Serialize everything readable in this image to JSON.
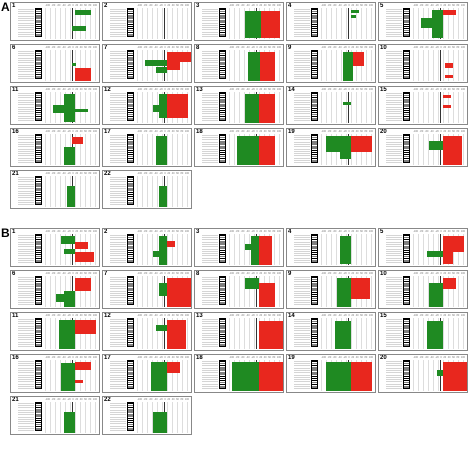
{
  "panels": [
    {
      "letter": "A",
      "chromosomes": [
        {
          "label": "1",
          "gain": [],
          "loss": [
            [
              0.05,
              0.2,
              0.55,
              0.85
            ],
            [
              0.55,
              0.7,
              0.5,
              0.75
            ]
          ]
        },
        {
          "label": "2",
          "gain": [],
          "loss": []
        },
        {
          "label": "3",
          "gain": [
            [
              0.08,
              0.92,
              0.6,
              0.95
            ]
          ],
          "loss": [
            [
              0.08,
              0.92,
              0.3,
              0.6
            ]
          ]
        },
        {
          "label": "4",
          "gain": [],
          "loss": [
            [
              0.05,
              0.15,
              0.55,
              0.7
            ],
            [
              0.2,
              0.3,
              0.55,
              0.65
            ]
          ]
        },
        {
          "label": "5",
          "gain": [
            [
              0.05,
              0.2,
              0.55,
              0.8
            ]
          ],
          "loss": [
            [
              0.05,
              0.9,
              0.35,
              0.55
            ],
            [
              0.3,
              0.6,
              0.15,
              0.35
            ]
          ]
        },
        {
          "label": "6",
          "gain": [
            [
              0.55,
              0.95,
              0.55,
              0.85
            ]
          ],
          "loss": [
            [
              0.4,
              0.5,
              0.5,
              0.58
            ]
          ]
        },
        {
          "label": "7",
          "gain": [
            [
              0.05,
              0.35,
              0.55,
              1.0
            ],
            [
              0.35,
              0.6,
              0.55,
              0.8
            ]
          ],
          "loss": [
            [
              0.3,
              0.5,
              0.15,
              0.55
            ],
            [
              0.5,
              0.7,
              0.35,
              0.55
            ]
          ]
        },
        {
          "label": "8",
          "gain": [
            [
              0.05,
              0.95,
              0.58,
              0.85
            ]
          ],
          "loss": [
            [
              0.05,
              0.95,
              0.35,
              0.58
            ]
          ]
        },
        {
          "label": "9",
          "gain": [
            [
              0.05,
              0.5,
              0.6,
              0.8
            ]
          ],
          "loss": [
            [
              0.05,
              0.95,
              0.4,
              0.6
            ]
          ]
        },
        {
          "label": "10",
          "gain": [
            [
              0.4,
              0.55,
              0.6,
              0.75
            ],
            [
              0.75,
              0.85,
              0.6,
              0.75
            ]
          ],
          "loss": []
        },
        {
          "label": "11",
          "gain": [],
          "loss": [
            [
              0.05,
              0.9,
              0.35,
              0.55
            ],
            [
              0.4,
              0.65,
              0.15,
              0.35
            ],
            [
              0.5,
              0.6,
              0.55,
              0.8
            ]
          ]
        },
        {
          "label": "12",
          "gain": [
            [
              0.05,
              0.8,
              0.55,
              0.95
            ]
          ],
          "loss": [
            [
              0.05,
              0.8,
              0.4,
              0.55
            ],
            [
              0.4,
              0.6,
              0.3,
              0.4
            ]
          ]
        },
        {
          "label": "13",
          "gain": [
            [
              0.05,
              0.95,
              0.55,
              0.85
            ]
          ],
          "loss": [
            [
              0.05,
              0.95,
              0.3,
              0.55
            ]
          ]
        },
        {
          "label": "14",
          "gain": [],
          "loss": [
            [
              0.3,
              0.4,
              0.4,
              0.55
            ]
          ]
        },
        {
          "label": "15",
          "gain": [
            [
              0.1,
              0.18,
              0.55,
              0.7
            ],
            [
              0.4,
              0.48,
              0.55,
              0.7
            ]
          ],
          "loss": []
        },
        {
          "label": "16",
          "gain": [
            [
              0.1,
              0.3,
              0.5,
              0.7
            ]
          ],
          "loss": [
            [
              0.4,
              0.95,
              0.35,
              0.55
            ]
          ]
        },
        {
          "label": "17",
          "gain": [],
          "loss": [
            [
              0.05,
              0.95,
              0.35,
              0.55
            ]
          ]
        },
        {
          "label": "18",
          "gain": [
            [
              0.05,
              0.95,
              0.55,
              0.85
            ]
          ],
          "loss": [
            [
              0.05,
              0.95,
              0.15,
              0.55
            ]
          ]
        },
        {
          "label": "19",
          "gain": [
            [
              0.05,
              0.55,
              0.55,
              0.95
            ]
          ],
          "loss": [
            [
              0.05,
              0.55,
              0.1,
              0.55
            ],
            [
              0.55,
              0.75,
              0.35,
              0.55
            ]
          ]
        },
        {
          "label": "20",
          "gain": [
            [
              0.05,
              0.95,
              0.55,
              0.9
            ]
          ],
          "loss": [
            [
              0.2,
              0.5,
              0.3,
              0.55
            ]
          ]
        },
        {
          "label": "21",
          "gain": [],
          "loss": [
            [
              0.3,
              0.95,
              0.4,
              0.55
            ]
          ]
        },
        {
          "label": "22",
          "gain": [],
          "loss": [
            [
              0.3,
              0.95,
              0.4,
              0.55
            ]
          ]
        }
      ]
    },
    {
      "letter": "B",
      "chromosomes": [
        {
          "label": "1",
          "gain": [
            [
              0.25,
              0.45,
              0.55,
              0.8
            ],
            [
              0.55,
              0.85,
              0.55,
              0.9
            ]
          ],
          "loss": [
            [
              0.05,
              0.3,
              0.3,
              0.55
            ],
            [
              0.45,
              0.6,
              0.35,
              0.55
            ]
          ]
        },
        {
          "label": "2",
          "gain": [
            [
              0.2,
              0.4,
              0.55,
              0.7
            ]
          ],
          "loss": [
            [
              0.05,
              0.95,
              0.4,
              0.55
            ],
            [
              0.5,
              0.7,
              0.3,
              0.4
            ]
          ]
        },
        {
          "label": "3",
          "gain": [
            [
              0.05,
              0.95,
              0.55,
              0.8
            ]
          ],
          "loss": [
            [
              0.05,
              0.95,
              0.4,
              0.55
            ],
            [
              0.3,
              0.5,
              0.3,
              0.4
            ]
          ]
        },
        {
          "label": "4",
          "gain": [],
          "loss": [
            [
              0.05,
              0.9,
              0.35,
              0.55
            ]
          ]
        },
        {
          "label": "5",
          "gain": [
            [
              0.05,
              0.55,
              0.55,
              0.95
            ],
            [
              0.55,
              0.9,
              0.55,
              0.75
            ]
          ],
          "loss": [
            [
              0.5,
              0.7,
              0.25,
              0.55
            ]
          ]
        },
        {
          "label": "6",
          "gain": [
            [
              0.05,
              0.45,
              0.55,
              0.85
            ]
          ],
          "loss": [
            [
              0.45,
              0.95,
              0.35,
              0.55
            ],
            [
              0.55,
              0.8,
              0.2,
              0.35
            ]
          ]
        },
        {
          "label": "7",
          "gain": [
            [
              0.05,
              0.95,
              0.55,
              1.0
            ]
          ],
          "loss": [
            [
              0.2,
              0.6,
              0.4,
              0.55
            ]
          ]
        },
        {
          "label": "8",
          "gain": [
            [
              0.2,
              0.95,
              0.55,
              0.85
            ]
          ],
          "loss": [
            [
              0.05,
              0.4,
              0.3,
              0.55
            ]
          ]
        },
        {
          "label": "9",
          "gain": [
            [
              0.05,
              0.7,
              0.55,
              0.9
            ]
          ],
          "loss": [
            [
              0.05,
              0.95,
              0.3,
              0.55
            ]
          ]
        },
        {
          "label": "10",
          "gain": [
            [
              0.05,
              0.4,
              0.55,
              0.8
            ]
          ],
          "loss": [
            [
              0.2,
              0.95,
              0.3,
              0.55
            ]
          ]
        },
        {
          "label": "11",
          "gain": [
            [
              0.05,
              0.5,
              0.55,
              0.95
            ]
          ],
          "loss": [
            [
              0.05,
              0.95,
              0.25,
              0.55
            ]
          ]
        },
        {
          "label": "12",
          "gain": [
            [
              0.05,
              0.95,
              0.55,
              0.9
            ]
          ],
          "loss": [
            [
              0.2,
              0.4,
              0.35,
              0.55
            ]
          ]
        },
        {
          "label": "13",
          "gain": [
            [
              0.1,
              0.95,
              0.55,
              1.0
            ]
          ],
          "loss": []
        },
        {
          "label": "14",
          "gain": [],
          "loss": [
            [
              0.1,
              0.95,
              0.25,
              0.55
            ]
          ]
        },
        {
          "label": "15",
          "gain": [],
          "loss": [
            [
              0.1,
              0.95,
              0.25,
              0.55
            ]
          ]
        },
        {
          "label": "16",
          "gain": [
            [
              0.05,
              0.3,
              0.55,
              0.85
            ],
            [
              0.6,
              0.7,
              0.55,
              0.7
            ]
          ],
          "loss": [
            [
              0.1,
              0.95,
              0.3,
              0.55
            ]
          ]
        },
        {
          "label": "17",
          "gain": [
            [
              0.05,
              0.4,
              0.55,
              0.8
            ]
          ],
          "loss": [
            [
              0.05,
              0.95,
              0.25,
              0.55
            ]
          ]
        },
        {
          "label": "18",
          "gain": [
            [
              0.05,
              0.95,
              0.55,
              1.0
            ]
          ],
          "loss": [
            [
              0.05,
              0.95,
              0.05,
              0.55
            ]
          ]
        },
        {
          "label": "19",
          "gain": [
            [
              0.05,
              0.95,
              0.55,
              0.95
            ]
          ],
          "loss": [
            [
              0.05,
              0.95,
              0.1,
              0.55
            ]
          ]
        },
        {
          "label": "20",
          "gain": [
            [
              0.05,
              0.95,
              0.55,
              1.0
            ]
          ],
          "loss": [
            [
              0.3,
              0.5,
              0.45,
              0.55
            ]
          ]
        },
        {
          "label": "21",
          "gain": [],
          "loss": [
            [
              0.3,
              0.95,
              0.35,
              0.55
            ]
          ]
        },
        {
          "label": "22",
          "gain": [],
          "loss": [
            [
              0.3,
              0.95,
              0.3,
              0.55
            ]
          ]
        }
      ]
    }
  ],
  "axis_ticks": [
    "-100",
    "-80",
    "-60",
    "-40",
    "-20",
    "0",
    "20",
    "40",
    "60",
    "80",
    "100"
  ],
  "colors": {
    "gain": "#e8271e",
    "loss": "#1f8a22",
    "border": "#888888",
    "grid": "#bbbbbb"
  }
}
